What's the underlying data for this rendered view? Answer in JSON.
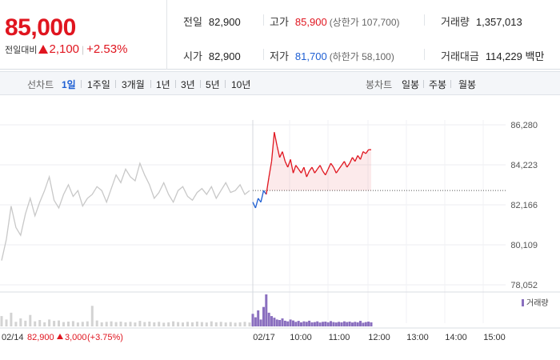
{
  "quote": {
    "price": "85,000",
    "change_label": "전일대비",
    "change_amount": "2,100",
    "change_percent": "+2.53%",
    "prev_close": {
      "label": "전일",
      "value": "82,900"
    },
    "open": {
      "label": "시가",
      "value": "82,900"
    },
    "high": {
      "label": "고가",
      "value": "85,900",
      "limit": "(상한가 107,700)"
    },
    "low": {
      "label": "저가",
      "value": "81,700",
      "limit": "(하한가 58,100)"
    },
    "volume": {
      "label": "거래량",
      "value": "1,357,013"
    },
    "amount": {
      "label": "거래대금",
      "value": "114,229 백만"
    }
  },
  "tabs": {
    "line_label": "선차트",
    "line_tabs": [
      "1일",
      "1주일",
      "3개월",
      "1년",
      "3년",
      "5년",
      "10년"
    ],
    "active": "1일",
    "candle_label": "봉차트",
    "candle_tabs": [
      "일봉",
      "주봉",
      "월봉"
    ]
  },
  "colors": {
    "up": "#e0151f",
    "down": "#1e5fd3",
    "prev": "#c8c8c8",
    "volume": "#8a6fbf"
  },
  "chart_data": {
    "type": "line",
    "y_ticks": [
      "86,280",
      "84,223",
      "82,166",
      "80,109",
      "78,052"
    ],
    "ylim": [
      78052,
      86280
    ],
    "reference_price": 82900,
    "x_labels": [
      "02/14",
      "02/17",
      "10:00",
      "11:00",
      "12:00",
      "13:00",
      "14:00",
      "15:00"
    ],
    "prev_day_caption": {
      "date": "02/14",
      "close": "82,900",
      "change": "3,000",
      "percent": "(+3.75%)"
    },
    "volume_legend": "거래량",
    "prev_day_series": [
      79300,
      80400,
      82100,
      81000,
      80600,
      81700,
      82500,
      81600,
      82300,
      82900,
      83600,
      82400,
      82000,
      82700,
      83200,
      82600,
      82900,
      82100,
      82500,
      82700,
      83100,
      82900,
      82300,
      83000,
      83700,
      83300,
      84000,
      83600,
      83400,
      84300,
      83700,
      83200,
      82500,
      82800,
      83300,
      82700,
      82300,
      82900,
      83100,
      82600,
      82400,
      82800,
      83000,
      82700,
      83100,
      82500,
      82900,
      83300,
      82800,
      82900,
      83200,
      82700,
      82900
    ],
    "today_series": [
      82300,
      82000,
      82500,
      82300,
      82900,
      82700,
      83600,
      84400,
      85900,
      85200,
      84600,
      84900,
      84400,
      84100,
      84500,
      83800,
      84200,
      84000,
      83800,
      84100,
      83600,
      83900,
      84100,
      83800,
      84000,
      84200,
      83900,
      83700,
      84000,
      84300,
      84100,
      83800,
      84000,
      84200,
      84400,
      84100,
      84300,
      84600,
      84400,
      84700,
      84500,
      84900,
      84800,
      85000,
      85000
    ],
    "prev_day_volume": [
      45,
      30,
      60,
      20,
      35,
      25,
      50,
      22,
      28,
      18,
      30,
      24,
      26,
      19,
      21,
      23,
      17,
      20,
      22,
      90,
      26,
      18,
      20,
      22,
      19,
      21,
      18,
      20,
      17,
      24,
      19,
      21,
      18,
      20,
      16,
      18,
      22,
      19,
      17,
      20,
      18,
      21,
      19,
      17,
      22,
      18,
      20,
      17,
      19,
      16,
      18,
      20,
      17
    ],
    "today_volume": [
      55,
      40,
      70,
      30,
      85,
      140,
      60,
      45,
      38,
      30,
      28,
      35,
      25,
      22,
      30,
      26,
      20,
      24,
      18,
      22,
      20,
      25,
      18,
      19,
      22,
      17,
      20,
      21,
      18,
      23,
      19,
      17,
      20,
      18,
      22,
      19,
      21,
      17,
      20,
      18,
      24,
      16,
      19,
      21,
      18
    ]
  }
}
